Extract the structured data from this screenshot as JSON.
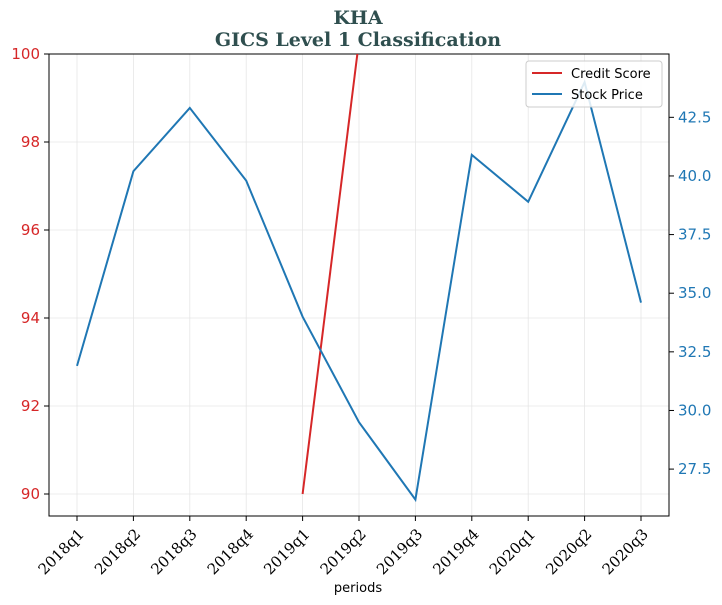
{
  "chart_data": {
    "type": "line",
    "title": "KHA",
    "subtitle": "GICS Level 1 Classification",
    "xlabel": "periods",
    "categories": [
      "2018q1",
      "2018q2",
      "2018q3",
      "2018q4",
      "2019q1",
      "2019q2",
      "2019q3",
      "2019q4",
      "2020q1",
      "2020q2",
      "2020q3"
    ],
    "left_axis": {
      "ylim": [
        89.5,
        100
      ],
      "ticks": [
        "90",
        "92",
        "94",
        "96",
        "98",
        "100"
      ],
      "color": "#d62728"
    },
    "right_axis": {
      "ylim": [
        25.5,
        45.2
      ],
      "ticks": [
        "27.5",
        "30.0",
        "32.5",
        "35.0",
        "37.5",
        "40.0",
        "42.5"
      ],
      "color": "#1f77b4"
    },
    "series": [
      {
        "name": "Credit Score",
        "axis": "left",
        "color": "#d62728",
        "values": [
          null,
          null,
          null,
          null,
          90,
          100.3,
          null,
          null,
          null,
          null,
          null
        ]
      },
      {
        "name": "Stock Price",
        "axis": "right",
        "color": "#1f77b4",
        "values": [
          31.9,
          40.2,
          42.9,
          39.8,
          34.0,
          29.5,
          26.2,
          40.9,
          38.9,
          44.0,
          34.6
        ]
      }
    ],
    "legend": "top-right",
    "grid": true
  }
}
